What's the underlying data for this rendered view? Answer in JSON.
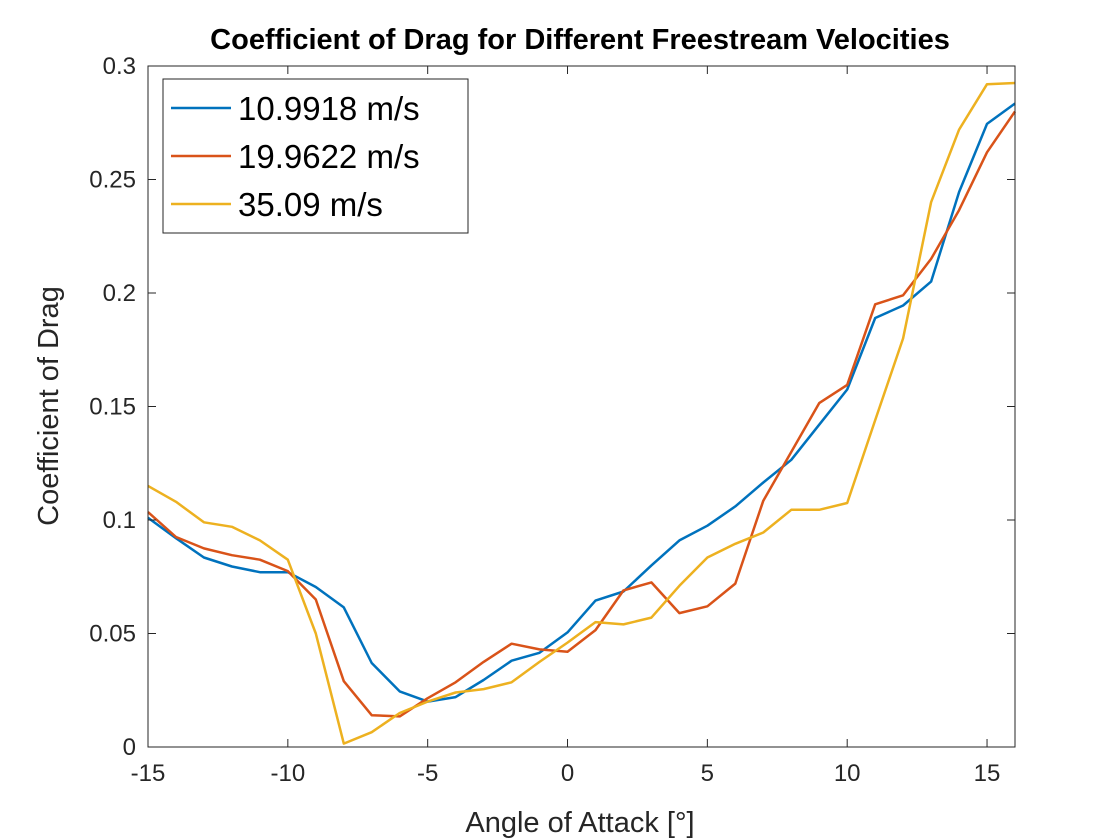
{
  "chart_data": {
    "type": "line",
    "title": "Coefficient of Drag for Different Freestream Velocities",
    "xlabel": "Angle of Attack [°]",
    "ylabel": "Coefficient of Drag",
    "xlim": [
      -15,
      16
    ],
    "ylim": [
      0,
      0.3
    ],
    "xticks": [
      "-15",
      "-10",
      "-5",
      "0",
      "5",
      "10",
      "15"
    ],
    "yticks": [
      "0",
      "0.05",
      "0.1",
      "0.15",
      "0.2",
      "0.25",
      "0.3"
    ],
    "grid": false,
    "legend_position": "top-left",
    "x": [
      -15,
      -14,
      -13,
      -12,
      -11,
      -10,
      -9,
      -8,
      -7,
      -6,
      -5,
      -4,
      -3,
      -2,
      -1,
      0,
      1,
      2,
      3,
      4,
      5,
      6,
      7,
      8,
      9,
      10,
      11,
      12,
      13,
      14,
      15,
      16
    ],
    "series": [
      {
        "name": "10.9918 m/s",
        "color": "#0072BD",
        "values": [
          0.101,
          0.092,
          0.0835,
          0.0795,
          0.077,
          0.077,
          0.0705,
          0.0615,
          0.037,
          0.0245,
          0.02,
          0.022,
          0.0295,
          0.038,
          0.0415,
          0.0505,
          0.0645,
          0.0685,
          0.08,
          0.091,
          0.0975,
          0.106,
          0.1165,
          0.1265,
          0.142,
          0.1575,
          0.189,
          0.1945,
          0.205,
          0.2445,
          0.2745,
          0.2835
        ]
      },
      {
        "name": "19.9622 m/s",
        "color": "#D95319",
        "values": [
          0.1035,
          0.0925,
          0.0875,
          0.0845,
          0.0825,
          0.0775,
          0.065,
          0.029,
          0.014,
          0.0135,
          0.0215,
          0.0285,
          0.0375,
          0.0455,
          0.043,
          0.042,
          0.0515,
          0.069,
          0.0725,
          0.059,
          0.062,
          0.072,
          0.1085,
          0.13,
          0.1515,
          0.1595,
          0.195,
          0.199,
          0.215,
          0.2365,
          0.262,
          0.28
        ]
      },
      {
        "name": "35.09 m/s",
        "color": "#EDB120",
        "values": [
          0.115,
          0.108,
          0.099,
          0.097,
          0.091,
          0.0825,
          0.05,
          0.0015,
          0.0065,
          0.015,
          0.02,
          0.024,
          0.0255,
          0.0285,
          0.0375,
          0.046,
          0.055,
          0.054,
          0.057,
          0.071,
          0.0835,
          0.0895,
          0.0945,
          0.1045,
          0.1045,
          0.1075,
          0.144,
          0.18,
          0.24,
          0.272,
          0.292,
          0.2925
        ]
      }
    ]
  }
}
